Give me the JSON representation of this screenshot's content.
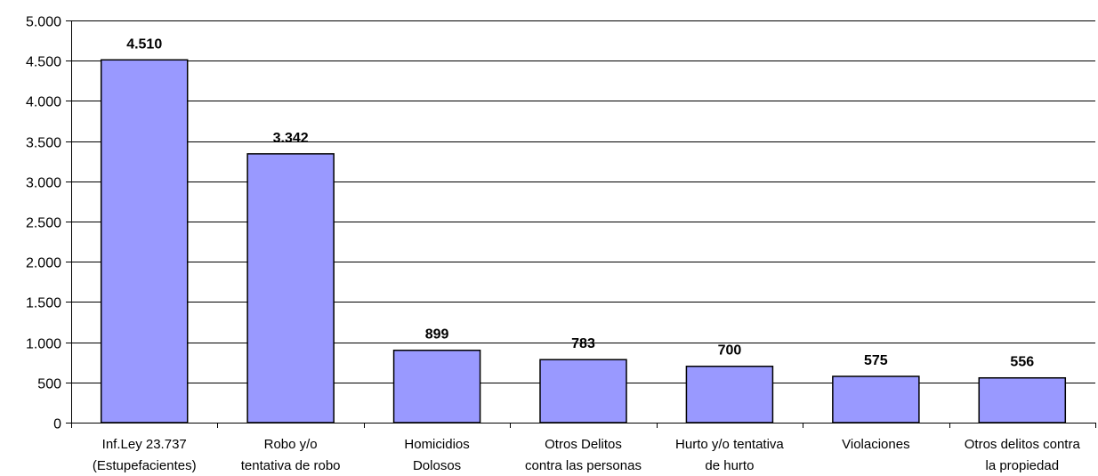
{
  "chart_data": {
    "type": "bar",
    "categories": [
      [
        "Inf.Ley 23.737",
        "(Estupefacientes)"
      ],
      [
        "Robo y/o",
        "tentativa de robo"
      ],
      [
        "Homicidios",
        "Dolosos"
      ],
      [
        "Otros Delitos",
        "contra las personas"
      ],
      [
        "Hurto y/o tentativa",
        "de hurto"
      ],
      [
        "Violaciones"
      ],
      [
        "Otros delitos contra",
        "la propiedad"
      ]
    ],
    "values": [
      4510,
      3342,
      899,
      783,
      700,
      575,
      556
    ],
    "value_labels": [
      "4.510",
      "3.342",
      "899",
      "783",
      "700",
      "575",
      "556"
    ],
    "yticks": [
      0,
      500,
      1000,
      1500,
      2000,
      2500,
      3000,
      3500,
      4000,
      4500,
      5000
    ],
    "ytick_labels": [
      "0",
      "500",
      "1.000",
      "1.500",
      "2.000",
      "2.500",
      "3.000",
      "3.500",
      "4.000",
      "4.500",
      "5.000"
    ],
    "ylim": [
      0,
      5000
    ],
    "grid": true,
    "bar_color": "#9999ff",
    "bar_outline": "#000000",
    "grid_color": "#000000"
  }
}
